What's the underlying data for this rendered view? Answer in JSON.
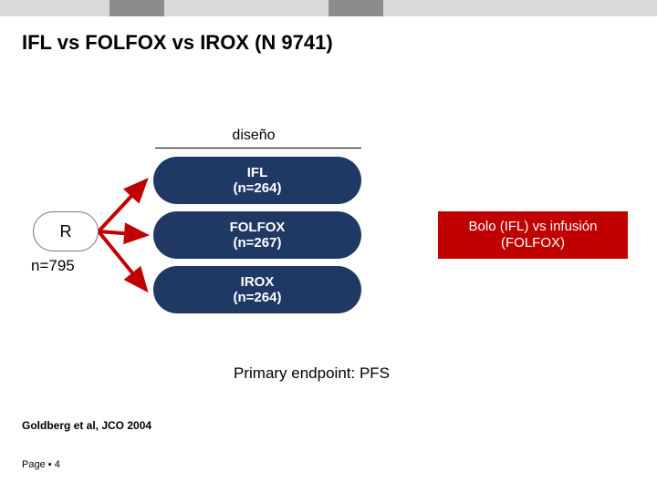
{
  "slide": {
    "title": "IFL vs FOLFOX vs IROX (N 9741)",
    "design_label": "diseño",
    "randomization": {
      "label": "R",
      "n_label": "n=795"
    },
    "arms": [
      {
        "name": "IFL",
        "n_label": "(n=264)"
      },
      {
        "name": "FOLFOX",
        "n_label": "(n=267)"
      },
      {
        "name": "IROX",
        "n_label": "(n=264)"
      }
    ],
    "callout": {
      "line1": "Bolo (IFL) vs infusión",
      "line2": "(FOLFOX)"
    },
    "primary_endpoint": "Primary endpoint: PFS",
    "citation": "Goldberg et al, JCO 2004",
    "page_label": "Page ▪ 4"
  },
  "style": {
    "header_squares": {
      "pattern": [
        "light",
        "light",
        "dark",
        "light",
        "light",
        "light",
        "dark",
        "light",
        "light",
        "light",
        "light",
        "light"
      ],
      "light": "#d9d9d9",
      "dark": "#8c8c8c"
    },
    "arm_fill": "#1f3864",
    "callout_fill": "#c00000",
    "arrow_color": "#c00000",
    "arrow_width": 4,
    "background": "#ffffff",
    "title_fontsize": 22,
    "body_fontsize": 15
  }
}
